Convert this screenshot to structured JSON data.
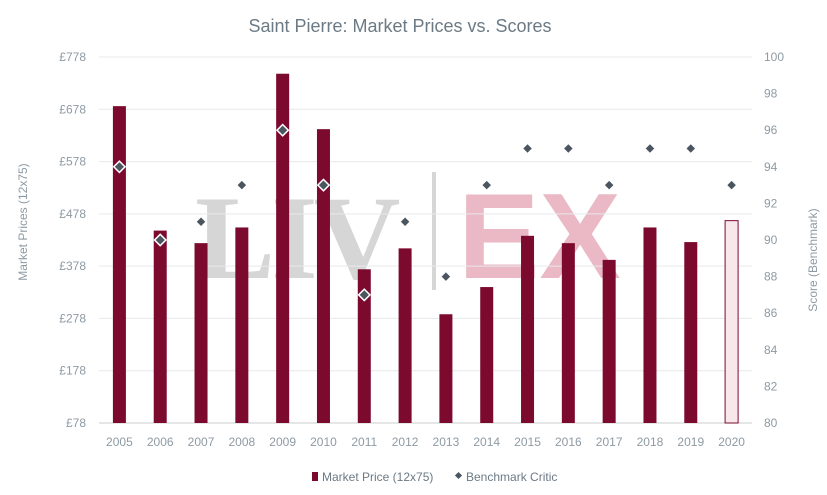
{
  "chart_data": {
    "type": "bar",
    "title": "Saint Pierre: Market Prices vs. Scores",
    "ylabel_left": "Market Prices (12x75)",
    "ylabel_right": "Score (Benchmark)",
    "categories": [
      "2005",
      "2006",
      "2007",
      "2008",
      "2009",
      "2010",
      "2011",
      "2012",
      "2013",
      "2014",
      "2015",
      "2016",
      "2017",
      "2018",
      "2019",
      "2020"
    ],
    "series": [
      {
        "name": "Market Price (12x75)",
        "type": "bar",
        "axis": "left",
        "color": "#7b0a2e",
        "values": [
          684,
          446,
          422,
          452,
          746,
          640,
          372,
          412,
          286,
          338,
          436,
          422,
          390,
          452,
          424,
          465
        ],
        "highlight_last": true,
        "highlight_color": "#f8e8ec"
      },
      {
        "name": "Benchmark Critic",
        "type": "scatter",
        "axis": "right",
        "color": "#4a5560",
        "values": [
          94,
          90,
          91,
          93,
          96,
          93,
          87,
          91,
          88,
          93,
          95,
          95,
          93,
          95,
          95,
          93
        ],
        "outlined": [
          true,
          true,
          false,
          false,
          true,
          true,
          true,
          false,
          false,
          false,
          false,
          false,
          false,
          false,
          false,
          false
        ]
      }
    ],
    "y_left": {
      "min": 78,
      "max": 778,
      "ticks": [
        78,
        178,
        278,
        378,
        478,
        578,
        678,
        778
      ],
      "tick_labels": [
        "£78",
        "£178",
        "£278",
        "£378",
        "£478",
        "£578",
        "£678",
        "£778"
      ]
    },
    "y_right": {
      "min": 80,
      "max": 100,
      "ticks": [
        80,
        82,
        84,
        86,
        88,
        90,
        92,
        94,
        96,
        98,
        100
      ],
      "tick_labels": [
        "80",
        "82",
        "84",
        "86",
        "88",
        "90",
        "92",
        "94",
        "96",
        "98",
        "100"
      ]
    },
    "grid": true,
    "legend": {
      "position": "bottom-center",
      "items": [
        "Market Price (12x75)",
        "Benchmark Critic"
      ]
    },
    "watermark": "LIV-EX"
  }
}
